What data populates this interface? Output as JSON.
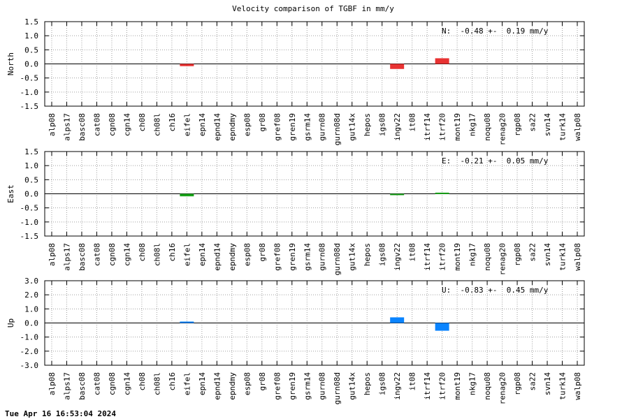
{
  "footer": {
    "timestamp": "Tue Apr 16 16:53:04 2024"
  },
  "chart_data": {
    "type": "bar",
    "title": "Velocity comparison of TGBF in mm/y",
    "categories": [
      "alp08",
      "alps17",
      "basc08",
      "cat08",
      "cgn08",
      "cgn14",
      "ch08",
      "ch08l",
      "ch16",
      "eifel",
      "epn14",
      "epnd14",
      "epndmy",
      "esp08",
      "gr08",
      "gref08",
      "gren19",
      "gsrm14",
      "gurn08",
      "gurn08d",
      "gut14x",
      "hepos",
      "igs08",
      "ingv22",
      "it08",
      "itrf14",
      "itrf20",
      "mont19",
      "nkg17",
      "noqu08",
      "renag20",
      "rgp08",
      "sa22",
      "svn14",
      "turk14",
      "walp08"
    ],
    "grid": true,
    "panels": [
      {
        "name": "north",
        "ylabel": "North",
        "ylim": [
          -1.5,
          1.5
        ],
        "yticks": [
          "1.5",
          "1.0",
          "0.5",
          "0.0",
          "-0.5",
          "-1.0",
          "-1.5"
        ],
        "ytick_values": [
          1.5,
          1.0,
          0.5,
          0.0,
          -0.5,
          -1.0,
          -1.5
        ],
        "color": "#e83232",
        "stat_text": "N:  -0.48 +-  0.19 mm/y",
        "bars": [
          {
            "category": "eifel",
            "from": -0.08,
            "to": 0.0
          },
          {
            "category": "ingv22",
            "from": -0.18,
            "to": 0.0
          },
          {
            "category": "itrf20",
            "from": 0.0,
            "to": 0.2
          }
        ]
      },
      {
        "name": "east",
        "ylabel": "East",
        "ylim": [
          -1.5,
          1.5
        ],
        "yticks": [
          "1.5",
          "1.0",
          "0.5",
          "0.0",
          "-0.5",
          "-1.0",
          "-1.5"
        ],
        "ytick_values": [
          1.5,
          1.0,
          0.5,
          0.0,
          -0.5,
          -1.0,
          -1.5
        ],
        "color": "#1aa31a",
        "stat_text": "E:  -0.21 +-  0.05 mm/y",
        "bars": [
          {
            "category": "eifel",
            "from": -0.09,
            "to": 0.0
          },
          {
            "category": "ingv22",
            "from": -0.03,
            "to": 0.0
          },
          {
            "category": "itrf20",
            "from": 0.0,
            "to": 0.04
          }
        ]
      },
      {
        "name": "up",
        "ylabel": "Up",
        "ylim": [
          -3.0,
          3.0
        ],
        "yticks": [
          "3.0",
          "2.0",
          "1.0",
          "0.0",
          "-1.0",
          "-2.0",
          "-3.0"
        ],
        "ytick_values": [
          3.0,
          2.0,
          1.0,
          0.0,
          -1.0,
          -2.0,
          -3.0
        ],
        "color": "#0a84ff",
        "stat_text": "U:  -0.83 +-  0.45 mm/y",
        "bars": [
          {
            "category": "eifel",
            "from": 0.0,
            "to": 0.1
          },
          {
            "category": "ingv22",
            "from": 0.0,
            "to": 0.4
          },
          {
            "category": "itrf20",
            "from": -0.55,
            "to": 0.0
          }
        ]
      }
    ]
  }
}
